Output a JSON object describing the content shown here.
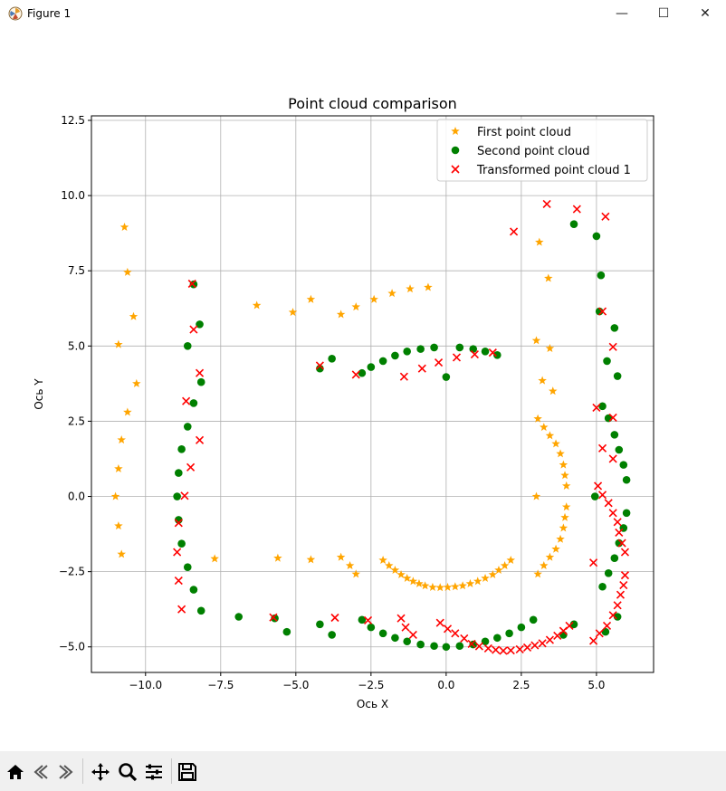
{
  "window": {
    "title": "Figure 1",
    "minimize_glyph": "—",
    "maximize_glyph": "☐",
    "close_glyph": "✕"
  },
  "toolbar": {
    "buttons": [
      "home-icon",
      "back-icon",
      "forward-icon",
      "pan-icon",
      "zoom-icon",
      "configure-subplots-icon",
      "save-icon"
    ]
  },
  "colors": {
    "series1": "#ffa500",
    "series2": "#008000",
    "series3": "#ff0000",
    "grid": "#b0b0b0"
  },
  "chart_data": {
    "type": "scatter",
    "title": "Point cloud comparison",
    "xlabel": "Ось X",
    "ylabel": "Ось Y",
    "xlim": [
      -11.8,
      6.9
    ],
    "ylim": [
      -5.85,
      12.65
    ],
    "xticks": [
      -10.0,
      -7.5,
      -5.0,
      -2.5,
      0.0,
      2.5,
      5.0
    ],
    "xtick_labels": [
      "−10.0",
      "−7.5",
      "−5.0",
      "−2.5",
      "0.0",
      "2.5",
      "5.0"
    ],
    "yticks": [
      -5.0,
      -2.5,
      0.0,
      2.5,
      5.0,
      7.5,
      10.0,
      12.5
    ],
    "ytick_labels": [
      "−5.0",
      "−2.5",
      "0.0",
      "2.5",
      "5.0",
      "7.5",
      "10.0",
      "12.5"
    ],
    "grid": true,
    "legend_position": "top-right",
    "series": [
      {
        "name": "First point cloud",
        "marker": "star",
        "color": "#ffa500",
        "points": [
          [
            -10.7,
            8.95
          ],
          [
            -10.6,
            7.45
          ],
          [
            -10.4,
            5.98
          ],
          [
            -10.9,
            5.05
          ],
          [
            -10.3,
            3.75
          ],
          [
            -10.6,
            2.8
          ],
          [
            -10.8,
            1.88
          ],
          [
            -10.9,
            0.92
          ],
          [
            -11.0,
            0.0
          ],
          [
            -10.9,
            -0.98
          ],
          [
            -10.8,
            -1.92
          ],
          [
            -7.7,
            -2.07
          ],
          [
            -5.6,
            -2.05
          ],
          [
            -4.5,
            -2.1
          ],
          [
            -3.5,
            -2.02
          ],
          [
            -3.2,
            -2.3
          ],
          [
            -3.0,
            -2.58
          ],
          [
            -2.1,
            -2.12
          ],
          [
            -1.9,
            -2.3
          ],
          [
            -1.7,
            -2.45
          ],
          [
            -1.5,
            -2.6
          ],
          [
            -1.3,
            -2.72
          ],
          [
            -1.1,
            -2.82
          ],
          [
            -0.9,
            -2.9
          ],
          [
            -0.7,
            -2.97
          ],
          [
            -0.45,
            -3.02
          ],
          [
            -0.2,
            -3.03
          ],
          [
            0.05,
            -3.02
          ],
          [
            0.3,
            -3.0
          ],
          [
            0.55,
            -2.97
          ],
          [
            0.8,
            -2.9
          ],
          [
            1.05,
            -2.82
          ],
          [
            1.3,
            -2.72
          ],
          [
            1.55,
            -2.6
          ],
          [
            1.75,
            -2.45
          ],
          [
            1.95,
            -2.3
          ],
          [
            2.15,
            -2.12
          ],
          [
            3.05,
            -2.58
          ],
          [
            3.25,
            -2.3
          ],
          [
            3.45,
            -2.02
          ],
          [
            3.65,
            -1.75
          ],
          [
            3.8,
            -1.42
          ],
          [
            3.9,
            -1.05
          ],
          [
            3.95,
            -0.7
          ],
          [
            4.0,
            -0.35
          ],
          [
            3.0,
            0.0
          ],
          [
            4.0,
            0.35
          ],
          [
            3.95,
            0.7
          ],
          [
            3.9,
            1.05
          ],
          [
            3.8,
            1.42
          ],
          [
            3.65,
            1.75
          ],
          [
            3.45,
            2.02
          ],
          [
            3.25,
            2.3
          ],
          [
            3.05,
            2.58
          ],
          [
            3.55,
            3.5
          ],
          [
            3.2,
            3.85
          ],
          [
            3.45,
            4.92
          ],
          [
            3.0,
            5.18
          ],
          [
            3.4,
            7.25
          ],
          [
            3.1,
            8.45
          ],
          [
            -6.3,
            6.35
          ],
          [
            -5.1,
            6.12
          ],
          [
            -4.5,
            6.55
          ],
          [
            -3.5,
            6.05
          ],
          [
            -3.0,
            6.3
          ],
          [
            -2.4,
            6.55
          ],
          [
            -1.8,
            6.75
          ],
          [
            -1.2,
            6.9
          ],
          [
            -0.6,
            6.95
          ]
        ]
      },
      {
        "name": "Second point cloud",
        "marker": "circle",
        "color": "#008000",
        "points": [
          [
            -8.4,
            7.05
          ],
          [
            -8.2,
            5.72
          ],
          [
            -8.6,
            5.0
          ],
          [
            -8.15,
            3.8
          ],
          [
            -8.4,
            3.1
          ],
          [
            -8.6,
            2.32
          ],
          [
            -8.8,
            1.57
          ],
          [
            -8.9,
            0.78
          ],
          [
            -8.95,
            0.0
          ],
          [
            -8.9,
            -0.78
          ],
          [
            -8.8,
            -1.57
          ],
          [
            -8.6,
            -2.35
          ],
          [
            -8.4,
            -3.1
          ],
          [
            -8.15,
            -3.8
          ],
          [
            -6.9,
            -4.0
          ],
          [
            -5.7,
            -4.05
          ],
          [
            -5.3,
            -4.5
          ],
          [
            -4.2,
            -4.25
          ],
          [
            -3.8,
            -4.6
          ],
          [
            -2.8,
            -4.1
          ],
          [
            -2.5,
            -4.35
          ],
          [
            -2.1,
            -4.55
          ],
          [
            -1.7,
            -4.7
          ],
          [
            -1.3,
            -4.82
          ],
          [
            -0.85,
            -4.92
          ],
          [
            -0.4,
            -4.97
          ],
          [
            0.0,
            -5.0
          ],
          [
            0.45,
            -4.97
          ],
          [
            0.9,
            -4.92
          ],
          [
            1.3,
            -4.82
          ],
          [
            1.7,
            -4.7
          ],
          [
            2.1,
            -4.55
          ],
          [
            2.5,
            -4.35
          ],
          [
            2.9,
            -4.1
          ],
          [
            3.9,
            -4.6
          ],
          [
            4.25,
            -4.25
          ],
          [
            5.3,
            -4.5
          ],
          [
            5.7,
            -4.0
          ],
          [
            5.2,
            -3.0
          ],
          [
            5.4,
            -2.55
          ],
          [
            5.6,
            -2.05
          ],
          [
            5.75,
            -1.55
          ],
          [
            5.9,
            -1.05
          ],
          [
            6.0,
            -0.55
          ],
          [
            4.95,
            0.0
          ],
          [
            6.0,
            0.55
          ],
          [
            5.9,
            1.05
          ],
          [
            5.75,
            1.55
          ],
          [
            5.6,
            2.05
          ],
          [
            5.4,
            2.6
          ],
          [
            5.2,
            3.0
          ],
          [
            5.7,
            4.0
          ],
          [
            5.35,
            4.5
          ],
          [
            5.6,
            5.6
          ],
          [
            5.1,
            6.15
          ],
          [
            5.15,
            7.35
          ],
          [
            5.0,
            8.65
          ],
          [
            4.25,
            9.05
          ],
          [
            -4.2,
            4.25
          ],
          [
            -3.8,
            4.58
          ],
          [
            -2.8,
            4.1
          ],
          [
            -2.5,
            4.3
          ],
          [
            -2.1,
            4.5
          ],
          [
            -1.7,
            4.68
          ],
          [
            -1.3,
            4.82
          ],
          [
            -0.85,
            4.9
          ],
          [
            -0.4,
            4.95
          ],
          [
            0.0,
            3.97
          ],
          [
            0.45,
            4.95
          ],
          [
            0.9,
            4.9
          ],
          [
            1.3,
            4.82
          ],
          [
            1.7,
            4.7
          ]
        ]
      },
      {
        "name": "Transformed point cloud 1",
        "marker": "x",
        "color": "#ff0000",
        "points": [
          [
            -8.45,
            7.07
          ],
          [
            -8.4,
            5.55
          ],
          [
            -8.2,
            4.1
          ],
          [
            -8.65,
            3.17
          ],
          [
            -8.2,
            1.87
          ],
          [
            -8.5,
            0.97
          ],
          [
            -8.7,
            0.02
          ],
          [
            -8.9,
            -0.88
          ],
          [
            -8.95,
            -1.85
          ],
          [
            -8.9,
            -2.8
          ],
          [
            -8.8,
            -3.75
          ],
          [
            -5.75,
            -4.02
          ],
          [
            -3.7,
            -4.03
          ],
          [
            -2.6,
            -4.12
          ],
          [
            -1.5,
            -4.05
          ],
          [
            -1.35,
            -4.35
          ],
          [
            -1.1,
            -4.6
          ],
          [
            -0.2,
            -4.2
          ],
          [
            0.05,
            -4.4
          ],
          [
            0.3,
            -4.55
          ],
          [
            0.6,
            -4.72
          ],
          [
            0.85,
            -4.9
          ],
          [
            1.1,
            -4.98
          ],
          [
            1.4,
            -5.05
          ],
          [
            1.65,
            -5.1
          ],
          [
            1.9,
            -5.13
          ],
          [
            2.15,
            -5.12
          ],
          [
            2.45,
            -5.08
          ],
          [
            2.7,
            -5.02
          ],
          [
            2.95,
            -4.95
          ],
          [
            3.2,
            -4.88
          ],
          [
            3.45,
            -4.77
          ],
          [
            3.7,
            -4.63
          ],
          [
            3.9,
            -4.47
          ],
          [
            4.1,
            -4.3
          ],
          [
            4.9,
            -4.8
          ],
          [
            5.1,
            -4.55
          ],
          [
            5.35,
            -4.3
          ],
          [
            5.55,
            -3.95
          ],
          [
            5.7,
            -3.62
          ],
          [
            5.8,
            -3.27
          ],
          [
            5.9,
            -2.95
          ],
          [
            5.95,
            -2.62
          ],
          [
            4.9,
            -2.2
          ],
          [
            5.95,
            -1.85
          ],
          [
            5.85,
            -1.55
          ],
          [
            5.75,
            -1.2
          ],
          [
            5.7,
            -0.85
          ],
          [
            5.55,
            -0.55
          ],
          [
            5.4,
            -0.22
          ],
          [
            5.2,
            0.05
          ],
          [
            5.05,
            0.35
          ],
          [
            5.55,
            1.25
          ],
          [
            5.2,
            1.6
          ],
          [
            5.55,
            2.62
          ],
          [
            5.0,
            2.95
          ],
          [
            5.55,
            4.97
          ],
          [
            5.2,
            6.15
          ],
          [
            5.3,
            9.3
          ],
          [
            4.35,
            9.55
          ],
          [
            3.35,
            9.72
          ],
          [
            2.25,
            8.8
          ],
          [
            -4.2,
            4.35
          ],
          [
            -3.0,
            4.05
          ],
          [
            -1.4,
            3.98
          ],
          [
            -0.8,
            4.25
          ],
          [
            -0.25,
            4.45
          ],
          [
            0.35,
            4.62
          ],
          [
            0.95,
            4.72
          ],
          [
            1.55,
            4.78
          ]
        ]
      }
    ]
  }
}
